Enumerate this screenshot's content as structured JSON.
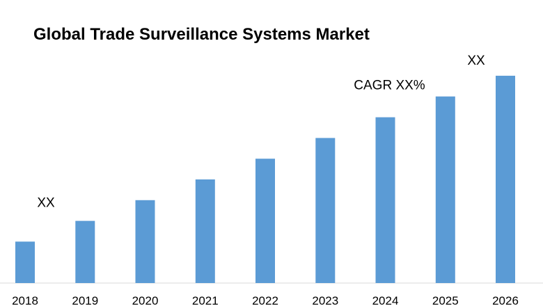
{
  "chart_data": {
    "type": "bar",
    "title": "Global Trade Surveillance Systems Market",
    "categories": [
      "2018",
      "2019",
      "2020",
      "2021",
      "2022",
      "2023",
      "2024",
      "2025",
      "2026"
    ],
    "values": [
      20,
      30,
      40,
      50,
      60,
      70,
      80,
      90,
      100
    ],
    "xlabel": "",
    "ylabel": "",
    "ylim": [
      0,
      103
    ],
    "grid": false,
    "bar_color": "#5b9bd5",
    "annotations": [
      {
        "text": "XX",
        "category": "2018"
      },
      {
        "text": "CAGR XX%",
        "category": "2024"
      },
      {
        "text": "XX",
        "category": "2026"
      }
    ]
  }
}
